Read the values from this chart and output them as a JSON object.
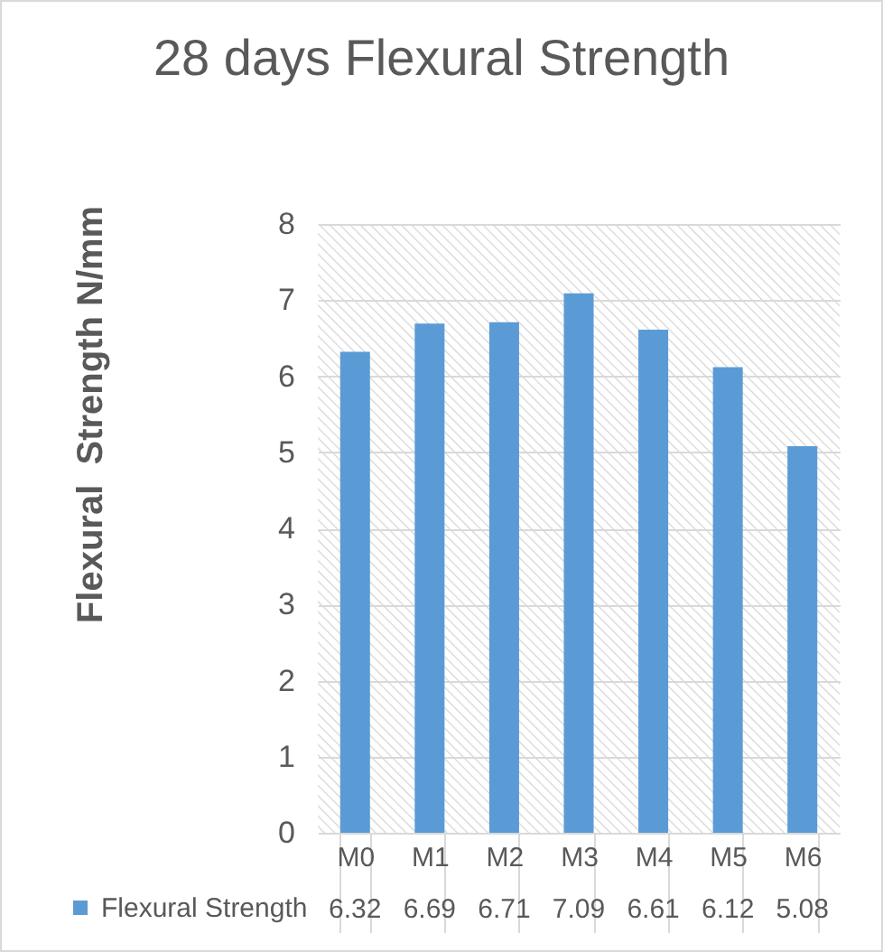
{
  "chart_data": {
    "type": "bar",
    "title": "28 days Flexural Strength",
    "ylabel": "Flexural  Strength N/mm",
    "categories": [
      "M0",
      "M1",
      "M2",
      "M3",
      "M4",
      "M5",
      "M6"
    ],
    "series": [
      {
        "name": "Flexural Strength",
        "color": "#5b9bd5",
        "values": [
          6.32,
          6.69,
          6.71,
          7.09,
          6.61,
          6.12,
          5.08
        ]
      }
    ],
    "ylim": [
      0,
      8
    ],
    "yticks": [
      0,
      1,
      2,
      3,
      4,
      5,
      6,
      7,
      8
    ],
    "grid": "y",
    "legend": "bottom left",
    "data_labels": true
  }
}
